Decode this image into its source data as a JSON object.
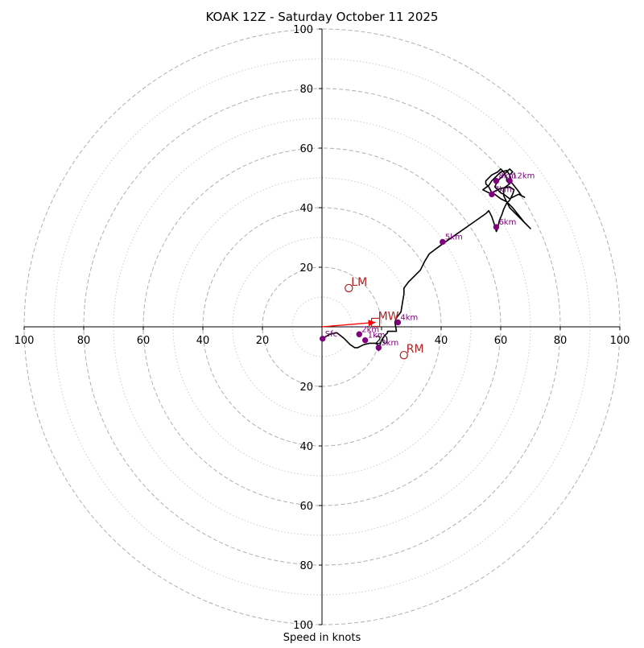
{
  "chart_data": {
    "type": "hodograph",
    "title": "KOAK 12Z - Saturday October 11 2025",
    "xlabel": "Speed in knots",
    "unit": "knots",
    "range": [
      -100,
      100
    ],
    "rings_major": [
      20,
      40,
      60,
      80,
      100
    ],
    "rings_minor": [
      10,
      30,
      50,
      70,
      90
    ],
    "tick_labels_x": [
      {
        "value": -100,
        "label": "100"
      },
      {
        "value": -80,
        "label": "80"
      },
      {
        "value": -60,
        "label": "60"
      },
      {
        "value": -40,
        "label": "40"
      },
      {
        "value": -20,
        "label": "20"
      },
      {
        "value": 20,
        "label": "20"
      },
      {
        "value": 40,
        "label": "40"
      },
      {
        "value": 60,
        "label": "60"
      },
      {
        "value": 80,
        "label": "80"
      },
      {
        "value": 100,
        "label": "100"
      }
    ],
    "tick_labels_y": [
      {
        "value": 100,
        "label": "100"
      },
      {
        "value": 80,
        "label": "80"
      },
      {
        "value": 60,
        "label": "60"
      },
      {
        "value": 40,
        "label": "40"
      },
      {
        "value": 20,
        "label": "20"
      },
      {
        "value": -20,
        "label": "20"
      },
      {
        "value": -40,
        "label": "40"
      },
      {
        "value": -60,
        "label": "60"
      },
      {
        "value": -80,
        "label": "80"
      },
      {
        "value": -100,
        "label": "100"
      }
    ],
    "trace": [
      [
        0.2,
        -4
      ],
      [
        2.5,
        -2.5
      ],
      [
        5,
        -2
      ],
      [
        7.5,
        -4
      ],
      [
        9.5,
        -6
      ],
      [
        11,
        -7
      ],
      [
        12,
        -7
      ],
      [
        14,
        -6
      ],
      [
        16,
        -5.5
      ],
      [
        18,
        -5.5
      ],
      [
        19.5,
        -6.5
      ],
      [
        19,
        -8
      ],
      [
        19.5,
        -6
      ],
      [
        20,
        -4.5
      ],
      [
        21,
        -3
      ],
      [
        22,
        -2
      ],
      [
        22,
        -1.5
      ],
      [
        25,
        -1.5
      ],
      [
        24.5,
        1.5
      ],
      [
        25,
        3
      ],
      [
        26.5,
        5
      ],
      [
        27,
        8
      ],
      [
        27.5,
        11
      ],
      [
        27.5,
        13
      ],
      [
        29,
        15
      ],
      [
        31,
        17
      ],
      [
        33,
        19
      ],
      [
        34.5,
        22
      ],
      [
        36,
        24.5
      ],
      [
        40,
        27.5
      ],
      [
        45,
        31
      ],
      [
        50,
        34.5
      ],
      [
        55,
        38
      ],
      [
        56,
        39
      ],
      [
        57,
        37
      ],
      [
        58,
        34
      ],
      [
        58.5,
        32
      ],
      [
        59,
        33
      ],
      [
        59.5,
        35.5
      ],
      [
        60.5,
        38
      ],
      [
        61,
        39.5
      ],
      [
        62,
        41.5
      ],
      [
        63,
        42.5
      ],
      [
        64,
        44.5
      ],
      [
        64.5,
        46
      ],
      [
        63,
        47
      ],
      [
        60,
        46.5
      ],
      [
        57,
        45
      ],
      [
        56,
        47
      ],
      [
        55,
        48
      ],
      [
        55,
        49
      ],
      [
        57,
        51
      ],
      [
        59,
        52
      ],
      [
        60,
        53
      ],
      [
        61,
        52
      ],
      [
        62,
        50
      ],
      [
        62,
        49
      ],
      [
        63,
        48
      ],
      [
        61,
        46.5
      ],
      [
        61,
        44
      ],
      [
        62,
        42
      ],
      [
        63,
        40
      ],
      [
        65,
        38
      ],
      [
        67,
        36
      ],
      [
        69,
        34
      ],
      [
        70,
        33
      ],
      [
        68,
        35
      ],
      [
        66,
        37.5
      ],
      [
        64,
        40
      ],
      [
        62,
        42
      ],
      [
        60,
        43
      ],
      [
        58,
        44.5
      ],
      [
        56,
        45
      ],
      [
        54,
        46
      ],
      [
        56,
        47.5
      ],
      [
        57,
        49
      ],
      [
        58,
        50
      ],
      [
        59,
        51
      ],
      [
        60,
        52
      ],
      [
        62,
        52.5
      ],
      [
        63,
        51
      ],
      [
        63,
        49
      ],
      [
        64,
        48
      ],
      [
        66,
        45.5
      ],
      [
        67,
        44
      ],
      [
        68,
        43.5
      ],
      [
        66,
        44.5
      ],
      [
        65,
        44
      ],
      [
        63,
        43
      ],
      [
        61,
        44.5
      ],
      [
        60,
        45
      ],
      [
        59,
        46
      ],
      [
        58,
        47
      ],
      [
        59,
        49
      ],
      [
        60,
        50
      ],
      [
        61,
        51
      ],
      [
        62,
        52
      ],
      [
        63,
        53
      ],
      [
        64,
        52
      ],
      [
        63,
        51
      ],
      [
        63.5,
        49.5
      ],
      [
        63,
        48
      ]
    ],
    "height_markers": [
      {
        "label": "Sfc",
        "u": 0.2,
        "v": -4
      },
      {
        "label": "1km",
        "u": 14.5,
        "v": -4.5
      },
      {
        "label": "2km",
        "u": 12.5,
        "v": -2.5
      },
      {
        "label": "3km",
        "u": 19,
        "v": -7
      },
      {
        "label": "4km",
        "u": 25.5,
        "v": 1.5
      },
      {
        "label": "5km",
        "u": 40.5,
        "v": 28.5
      },
      {
        "label": "6km",
        "u": 58.5,
        "v": 33.5
      },
      {
        "label": "7km",
        "u": 57,
        "v": 44.5
      },
      {
        "label": "8km",
        "u": 58.5,
        "v": 49
      },
      {
        "label": "12km",
        "u": 63,
        "v": 49
      }
    ],
    "storm_motion": [
      {
        "label": "LM",
        "u": 9,
        "v": 13,
        "marker": "circle"
      },
      {
        "label": "RM",
        "u": 27.5,
        "v": -9.5,
        "marker": "circle"
      },
      {
        "label": "MW",
        "u": 18,
        "v": 1.5,
        "marker": "square"
      }
    ],
    "mean_wind_vector": {
      "from": [
        0,
        0
      ],
      "to": [
        18,
        1.5
      ]
    },
    "colors": {
      "trace": "#000000",
      "markers": "#800080",
      "storm": "#b22222",
      "vector": "#ff0000",
      "grid": "#b0b0b0"
    }
  }
}
